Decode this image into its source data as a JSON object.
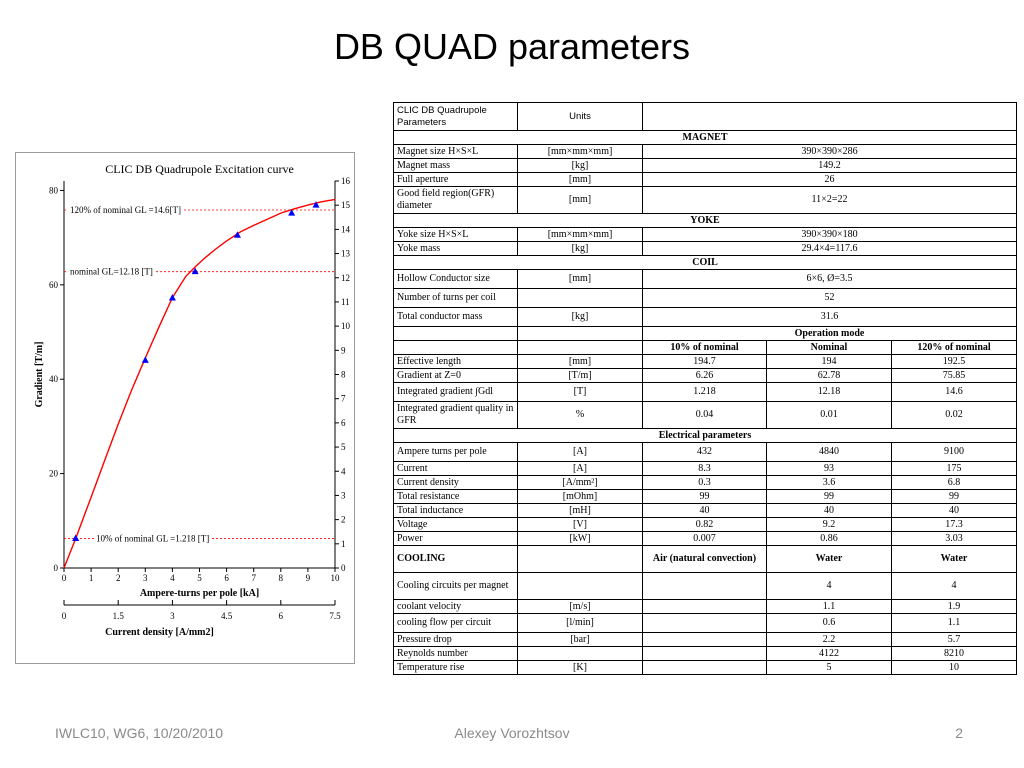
{
  "slide": {
    "title": "DB QUAD parameters",
    "footer_left": "IWLC10, WG6, 10/20/2010",
    "footer_center": "Alexey Vorozhtsov",
    "page_number": "2"
  },
  "chart_data": {
    "type": "line",
    "title": "CLIC DB Quadrupole Excitation curve",
    "xlabel": "Ampere-turns per pole [kA]",
    "ylabel": "Gradient [T/m]",
    "y2label": "Integrated gradient GL [T]",
    "x2label": "Current density [A/mm2]",
    "xlim": [
      0,
      10
    ],
    "ylim": [
      0,
      82
    ],
    "y2lim": [
      0,
      16
    ],
    "x2lim": [
      0,
      7.5
    ],
    "xticks": [
      "0",
      "1",
      "2",
      "3",
      "4",
      "5",
      "6",
      "7",
      "8",
      "9",
      "10"
    ],
    "yticks": [
      "0",
      "20",
      "40",
      "60",
      "80"
    ],
    "y2ticks": [
      "0",
      "1",
      "2",
      "3",
      "4",
      "5",
      "6",
      "7",
      "8",
      "9",
      "10",
      "11",
      "12",
      "13",
      "14",
      "15",
      "16"
    ],
    "x2ticks": [
      "0",
      "1.5",
      "3",
      "4.5",
      "6",
      "7.5"
    ],
    "x2tick_values": [
      0,
      1.5,
      3,
      4.5,
      6,
      7.5
    ],
    "curve": {
      "x": [
        0,
        0.43,
        1,
        1.5,
        2,
        2.5,
        3,
        3.5,
        4,
        4.5,
        4.84,
        5.2,
        5.6,
        6,
        6.5,
        7,
        7.5,
        8,
        8.5,
        9,
        9.5,
        10
      ],
      "y": [
        0,
        6.26,
        15,
        22.8,
        30.5,
        37.8,
        44.5,
        51,
        57.3,
        61.8,
        63.8,
        65.7,
        67.6,
        69.3,
        71.2,
        72.6,
        73.9,
        75.2,
        76.1,
        76.9,
        77.6,
        78.1
      ]
    },
    "points": {
      "x": [
        0.43,
        3,
        4,
        4.84,
        6.4,
        8.4,
        9.3
      ],
      "y": [
        6.26,
        44,
        57.2,
        62.8,
        70.5,
        75.2,
        76.9
      ]
    },
    "reference_lines": [
      {
        "label": "120% of nominal GL =14.6[T]",
        "value": 75.85
      },
      {
        "label": "nominal GL=12.18 [T]",
        "value": 62.78
      },
      {
        "label": "10% of nominal GL =1.218 [T]",
        "value": 6.26
      }
    ],
    "colors": {
      "curve": "#ff0000",
      "points": "#0000ff",
      "reference": "#ff0000"
    },
    "grid": false
  },
  "table": {
    "header": {
      "name": "CLIC DB Quadrupole Parameters",
      "units": "Units",
      "value": ""
    },
    "rows": [
      {
        "kind": "section",
        "cells": [
          "MAGNET"
        ]
      },
      {
        "kind": "span",
        "cells": [
          "Magnet size H×S×L",
          "[mm×mm×mm]",
          "390×390×286"
        ]
      },
      {
        "kind": "span",
        "cells": [
          "Magnet mass",
          "[kg]",
          "149.2"
        ]
      },
      {
        "kind": "span",
        "cells": [
          "Full aperture",
          "[mm]",
          "26"
        ]
      },
      {
        "kind": "span",
        "tall": true,
        "cells": [
          "Good field region(GFR) diameter",
          "[mm]",
          "11×2=22"
        ]
      },
      {
        "kind": "section",
        "cells": [
          "YOKE"
        ]
      },
      {
        "kind": "span",
        "cells": [
          "Yoke size H×S×L",
          "[mm×mm×mm]",
          "390×390×180"
        ]
      },
      {
        "kind": "span",
        "cells": [
          "Yoke mass",
          "[kg]",
          "29.4×4=117.6"
        ]
      },
      {
        "kind": "section",
        "cells": [
          "COIL"
        ]
      },
      {
        "kind": "span",
        "mid": true,
        "cells": [
          "Hollow Conductor size",
          "[mm]",
          "6×6, Ø=3.5"
        ]
      },
      {
        "kind": "span",
        "mid": true,
        "cells": [
          "Number of turns per coil",
          "",
          "52"
        ]
      },
      {
        "kind": "span",
        "mid": true,
        "cells": [
          "Total conductor mass",
          "[kg]",
          "31.6"
        ]
      },
      {
        "kind": "opmode",
        "cells": [
          "",
          "",
          "Operation mode"
        ]
      },
      {
        "kind": "three",
        "bold": true,
        "cells": [
          "",
          "",
          "10% of nominal",
          "Nominal",
          "120% of nominal"
        ]
      },
      {
        "kind": "three",
        "cells": [
          "Effective length",
          "[mm]",
          "194.7",
          "194",
          "192.5"
        ]
      },
      {
        "kind": "three",
        "cells": [
          "Gradient at Z=0",
          "[T/m]",
          "6.26",
          "62.78",
          "75.85"
        ]
      },
      {
        "kind": "three",
        "mid": true,
        "cells": [
          "Integrated gradient ∫Gdl",
          "[T]",
          "1.218",
          "12.18",
          "14.6"
        ]
      },
      {
        "kind": "three",
        "tall": true,
        "cells": [
          "Integrated gradient quality in GFR",
          "%",
          "0.04",
          "0.01",
          "0.02"
        ]
      },
      {
        "kind": "section",
        "cells": [
          "Electrical parameters"
        ]
      },
      {
        "kind": "three",
        "mid": true,
        "cells": [
          "Ampere turns per pole",
          "[A]",
          "432",
          "4840",
          "9100"
        ]
      },
      {
        "kind": "three",
        "cells": [
          "Current",
          "[A]",
          "8.3",
          "93",
          "175"
        ]
      },
      {
        "kind": "three",
        "cells": [
          "Current density",
          "[A/mm²]",
          "0.3",
          "3.6",
          "6.8"
        ]
      },
      {
        "kind": "three",
        "cells": [
          "Total resistance",
          "[mOhm]",
          "99",
          "99",
          "99"
        ]
      },
      {
        "kind": "three",
        "cells": [
          "Total inductance",
          "[mH]",
          "40",
          "40",
          "40"
        ]
      },
      {
        "kind": "three",
        "cells": [
          "Voltage",
          "[V]",
          "0.82",
          "9.2",
          "17.3"
        ]
      },
      {
        "kind": "three",
        "cells": [
          "Power",
          "[kW]",
          "0.007",
          "0.86",
          "3.03"
        ]
      },
      {
        "kind": "three",
        "tall": true,
        "bold": true,
        "cells": [
          "COOLING",
          "",
          "Air (natural convection)",
          "Water",
          "Water"
        ]
      },
      {
        "kind": "three",
        "tall": true,
        "cells": [
          "Cooling circuits per magnet",
          "",
          "",
          "4",
          "4"
        ]
      },
      {
        "kind": "three",
        "cells": [
          "coolant velocity",
          "[m/s]",
          "",
          "1.1",
          "1.9"
        ]
      },
      {
        "kind": "three",
        "mid": true,
        "cells": [
          "cooling flow per circuit",
          "[l/min]",
          "",
          "0.6",
          "1.1"
        ]
      },
      {
        "kind": "three",
        "cells": [
          "Pressure drop",
          "[bar]",
          "",
          "2.2",
          "5.7"
        ]
      },
      {
        "kind": "three",
        "cells": [
          "Reynolds number",
          "",
          "",
          "4122",
          "8210"
        ]
      },
      {
        "kind": "three",
        "cells": [
          "Temperature rise",
          "[K]",
          "",
          "5",
          "10"
        ]
      }
    ]
  }
}
